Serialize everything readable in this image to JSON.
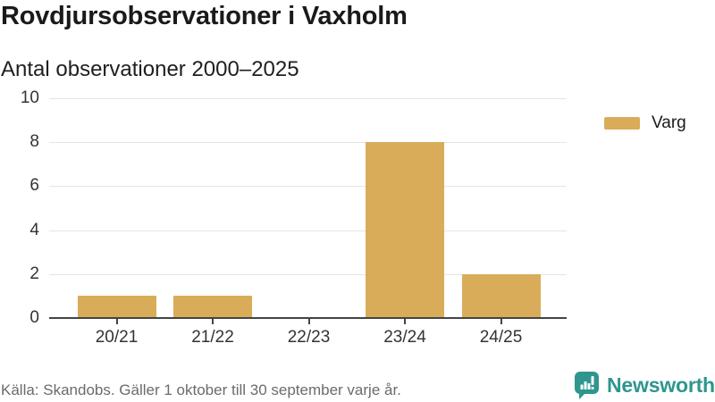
{
  "title": "Rovdjursobservationer i Vaxholm",
  "subtitle": "Antal observationer 2000–2025",
  "legend": {
    "label": "Varg",
    "color": "#D9AC5A"
  },
  "source": "Källa: Skandobs. Gäller 1 oktober till 30 september varje år.",
  "branding": {
    "name": "Newsworthy",
    "color": "#2E968F"
  },
  "chart_data": {
    "type": "bar",
    "title": "Rovdjursobservationer i Vaxholm",
    "subtitle": "Antal observationer 2000–2025",
    "categories": [
      "20/21",
      "21/22",
      "22/23",
      "23/24",
      "24/25"
    ],
    "series": [
      {
        "name": "Varg",
        "values": [
          1,
          1,
          0,
          8,
          2
        ]
      }
    ],
    "xlabel": "",
    "ylabel": "",
    "ylim": [
      0,
      10
    ],
    "yticks": [
      0,
      2,
      4,
      6,
      8,
      10
    ],
    "grid": true,
    "legend_position": "top-right",
    "bar_color": "#D9AC5A",
    "axis_color": "#444444",
    "gridline_color": "#e5e5e5"
  }
}
